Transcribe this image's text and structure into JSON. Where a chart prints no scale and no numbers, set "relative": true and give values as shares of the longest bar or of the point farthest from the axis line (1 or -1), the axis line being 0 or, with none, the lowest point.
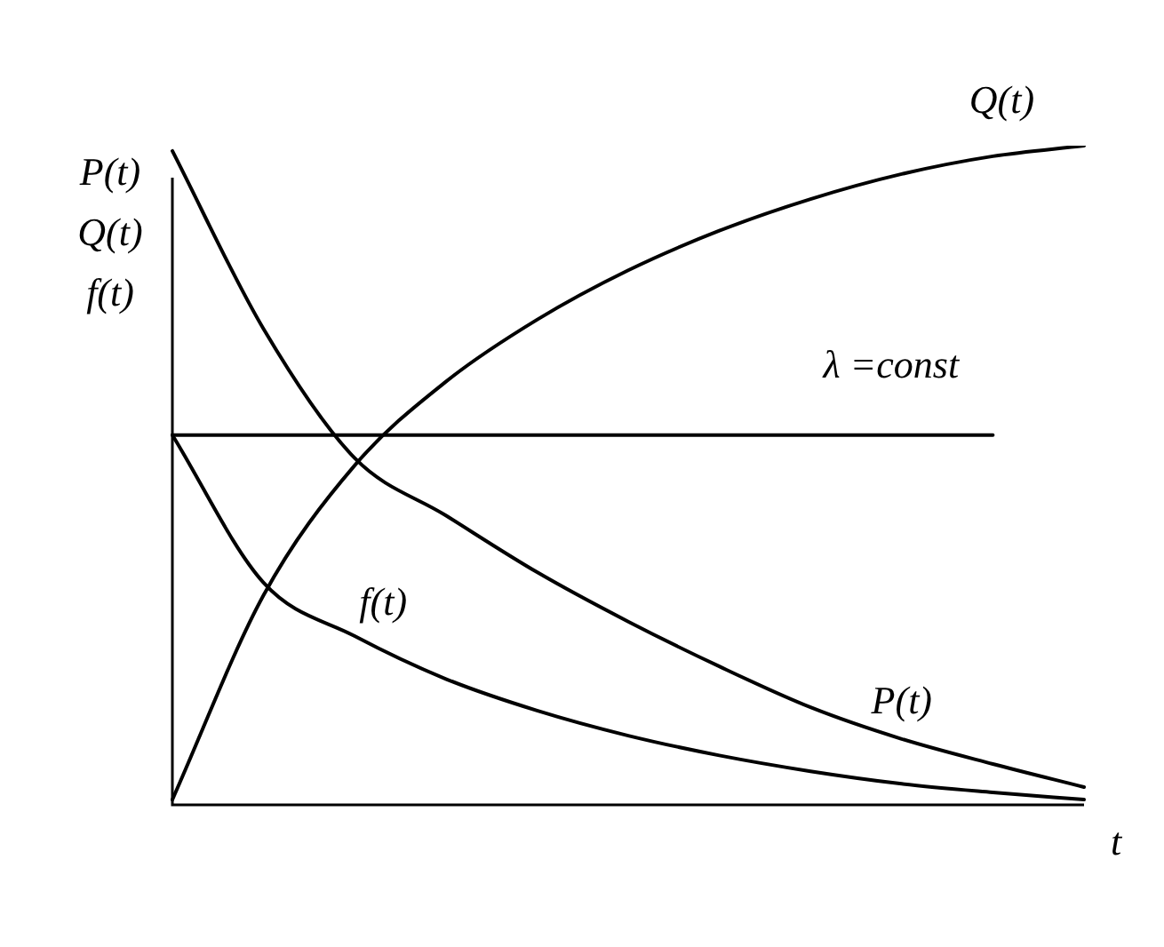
{
  "chart_data": {
    "type": "line",
    "relative": true,
    "xlabel": "t",
    "ylabel": "P(t)\nQ(t)\nf(t)",
    "categories": [
      null,
      null,
      null,
      null,
      null,
      null,
      null,
      null,
      null,
      null,
      null
    ],
    "series": [
      {
        "name": "P(t)",
        "color": "#000000",
        "values": [
          0.992,
          0.722,
          0.526,
          0.439,
          0.353,
          0.278,
          0.21,
          0.148,
          0.1,
          0.062,
          0.027
        ]
      },
      {
        "name": "Q(t)",
        "color": "#000000",
        "values": [
          0.008,
          0.318,
          0.515,
          0.642,
          0.736,
          0.811,
          0.871,
          0.919,
          0.957,
          0.984,
          1
        ]
      },
      {
        "name": "f(t)",
        "color": "#000000",
        "values": [
          0.561,
          0.337,
          0.256,
          0.191,
          0.143,
          0.105,
          0.075,
          0.051,
          0.032,
          0.019,
          0.008
        ]
      },
      {
        "name": "λ =const",
        "color": "#000000",
        "values": [
          0.561,
          0.561,
          0.561,
          0.561,
          0.561,
          0.561,
          0.561,
          0.561,
          0.561,
          0.561,
          null
        ]
      }
    ],
    "legend": false,
    "marker": "none",
    "line_style": "solid"
  }
}
